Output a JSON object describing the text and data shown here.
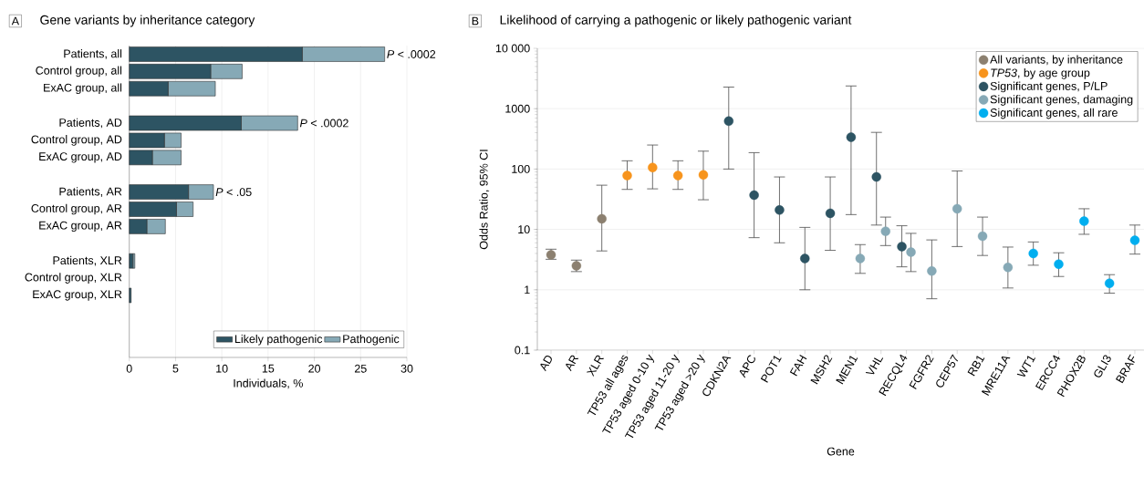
{
  "chart_data": [
    {
      "type": "bar",
      "orientation": "horizontal",
      "stacked": true,
      "title": "Gene variants by inheritance category",
      "xlabel": "Individuals, %",
      "categories": [
        "Patients, all",
        "Control group, all",
        "ExAC group, all",
        null,
        "Patients, AD",
        "Control group, AD",
        "ExAC group, AD",
        null,
        "Patients, AR",
        "Control group, AR",
        "ExAC group, AR",
        null,
        "Patients, XLR",
        "Control group, XLR",
        "ExAC group, XLR"
      ],
      "series": [
        {
          "name": "Likely pathogenic",
          "color": "#2d5463",
          "values": [
            18.7,
            8.8,
            4.2,
            null,
            12.1,
            3.8,
            2.5,
            null,
            6.4,
            5.1,
            1.9,
            null,
            0.4,
            0,
            0.2
          ]
        },
        {
          "name": "Pathogenic",
          "color": "#86a9b6",
          "values": [
            8.9,
            3.4,
            5.1,
            null,
            6.1,
            1.8,
            3.1,
            null,
            2.7,
            1.8,
            2.0,
            null,
            0.2,
            0,
            0
          ]
        }
      ],
      "xlim": [
        0,
        30
      ],
      "xticks": [
        0,
        5,
        10,
        15,
        20,
        25,
        30
      ],
      "grid": "x",
      "legend": "bottom right",
      "annotations": [
        "A",
        {
          "text": "*P* < .0002",
          "x": 27.6,
          "y": "Patients, all"
        },
        {
          "text": "*P* < .0002",
          "x": 18.2,
          "y": "Patients, AD"
        },
        {
          "text": "*P* < .05",
          "x": 9.1,
          "y": "Patients, AR"
        }
      ]
    },
    {
      "type": "scatter",
      "title": "Likelihood of carrying a pathogenic or likely pathogenic variant",
      "xlabel": "Gene",
      "ylabel": "Odds Ratio, 95% CI",
      "categories": [
        "AD",
        "AR",
        "XLR",
        "TP53 all ages",
        "TP53 aged 0-10 y",
        "TP53 aged 11-20 y",
        "TP53 aged >20 y",
        "CDKN2A",
        "APC",
        "POT1",
        "FAH",
        "MSH2",
        "MEN1",
        "VHL",
        "RECQL4",
        "FGFR2",
        "CEP57",
        "RB1",
        "MRE11A",
        "WT1",
        "ERCC4",
        "PHOX2B",
        "GLI3",
        "BRAF"
      ],
      "series": [
        {
          "name": "All variants, by inheritance",
          "color": "#8c8070",
          "values": [
            3.8,
            2.5,
            15,
            null,
            null,
            null,
            null,
            null,
            null,
            null,
            null,
            null,
            null,
            null,
            null,
            null,
            null,
            null,
            null,
            null,
            null,
            null,
            null,
            null
          ],
          "errors": [
            [
              3.2,
              4.7
            ],
            [
              2.0,
              3.1
            ],
            [
              4.4,
              54
            ],
            null,
            null,
            null,
            null,
            null,
            null,
            null,
            null,
            null,
            null,
            null,
            null,
            null,
            null,
            null,
            null,
            null,
            null,
            null,
            null,
            null
          ]
        },
        {
          "name": "*TP53*, by age group",
          "color": "#f7941d",
          "values": [
            null,
            null,
            null,
            78,
            106,
            78,
            80,
            null,
            null,
            null,
            null,
            null,
            null,
            null,
            null,
            null,
            null,
            null,
            null,
            null,
            null,
            null,
            null,
            null
          ],
          "errors": [
            null,
            null,
            null,
            [
              46,
              137
            ],
            [
              47,
              250
            ],
            [
              46,
              137
            ],
            [
              31,
              198
            ],
            null,
            null,
            null,
            null,
            null,
            null,
            null,
            null,
            null,
            null,
            null,
            null,
            null,
            null,
            null,
            null,
            null
          ]
        },
        {
          "name": "Significant genes, P/LP",
          "color": "#2d5463",
          "values": [
            null,
            null,
            null,
            null,
            null,
            null,
            null,
            622,
            37,
            21,
            3.3,
            18.5,
            337,
            74,
            5.2,
            null,
            null,
            null,
            null,
            null,
            null,
            null,
            null,
            null
          ],
          "errors": [
            null,
            null,
            null,
            null,
            null,
            null,
            null,
            [
              100,
              2280
            ],
            [
              7.3,
              187
            ],
            [
              6.0,
              74
            ],
            [
              1.0,
              10.8
            ],
            [
              4.5,
              74
            ],
            [
              17.6,
              2380
            ],
            [
              11.8,
              405
            ],
            [
              2.4,
              11.5
            ],
            null,
            null,
            null,
            null,
            null,
            null,
            null,
            null,
            null
          ]
        },
        {
          "name": "Significant genes, damaging",
          "color": "#86a9b6",
          "values": [
            null,
            null,
            null,
            null,
            null,
            null,
            null,
            null,
            null,
            null,
            null,
            null,
            3.3,
            9.3,
            4.2,
            2.05,
            22,
            7.7,
            2.35,
            null,
            null,
            null,
            null,
            null
          ],
          "errors": [
            null,
            null,
            null,
            null,
            null,
            null,
            null,
            null,
            null,
            null,
            null,
            null,
            [
              1.87,
              5.6
            ],
            [
              5.4,
              16
            ],
            [
              2.0,
              8.6
            ],
            [
              0.71,
              6.7
            ],
            [
              5.2,
              93
            ],
            [
              3.7,
              16
            ],
            [
              1.07,
              5.1
            ],
            null,
            null,
            null,
            null,
            null
          ]
        },
        {
          "name": "Significant genes, all rare",
          "color": "#00aeef",
          "values": [
            null,
            null,
            null,
            null,
            null,
            null,
            null,
            null,
            null,
            null,
            null,
            null,
            null,
            null,
            null,
            null,
            null,
            null,
            null,
            4.0,
            2.65,
            13.7,
            1.28,
            6.6
          ],
          "errors": [
            null,
            null,
            null,
            null,
            null,
            null,
            null,
            null,
            null,
            null,
            null,
            null,
            null,
            null,
            null,
            null,
            null,
            null,
            null,
            [
              2.55,
              6.2
            ],
            [
              1.66,
              4.1
            ],
            [
              8.3,
              22
            ],
            [
              0.88,
              1.78
            ],
            [
              3.9,
              11.8
            ]
          ]
        }
      ],
      "log": "y",
      "ylim": [
        0.1,
        10000
      ],
      "yticks": [
        0.1,
        1,
        10,
        100,
        1000,
        {
          "value": 10000,
          "label": "10 000"
        }
      ],
      "grid": "y",
      "legend": "top right",
      "marker": "circle",
      "annotations": [
        "B"
      ]
    }
  ]
}
